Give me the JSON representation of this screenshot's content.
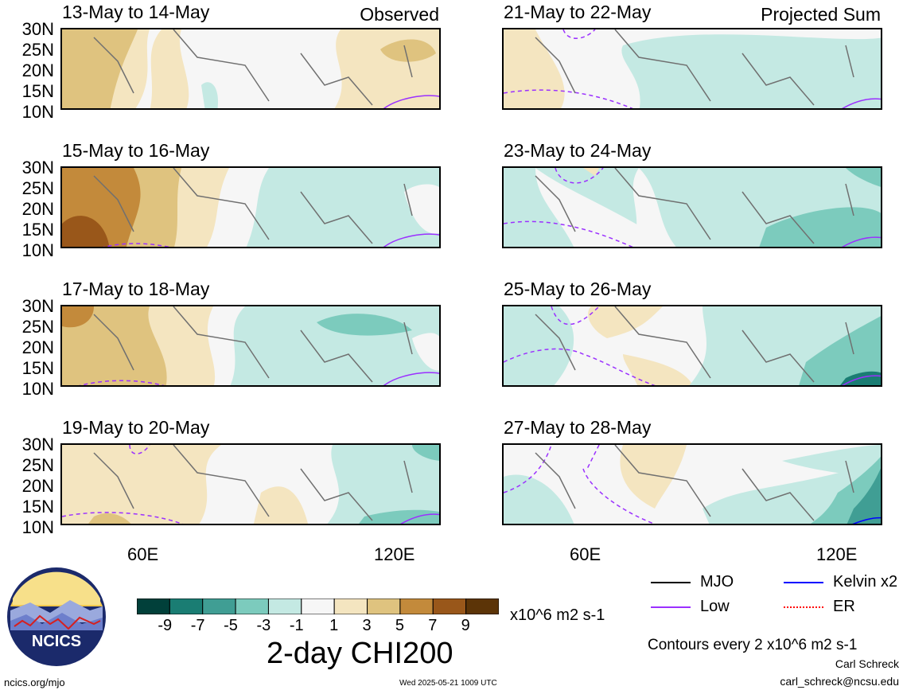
{
  "panels": [
    {
      "title": "13-May to 14-May",
      "tag": "Observed"
    },
    {
      "title": "21-May to 22-May",
      "tag": "Projected Sum"
    },
    {
      "title": "15-May to 16-May",
      "tag": ""
    },
    {
      "title": "23-May to 24-May",
      "tag": ""
    },
    {
      "title": "17-May to 18-May",
      "tag": ""
    },
    {
      "title": "25-May to 26-May",
      "tag": ""
    },
    {
      "title": "19-May to 20-May",
      "tag": ""
    },
    {
      "title": "27-May to 28-May",
      "tag": ""
    }
  ],
  "y_ticks": [
    "30N",
    "25N",
    "20N",
    "15N",
    "10N"
  ],
  "x_ticks": [
    "60E",
    "120E"
  ],
  "colorbar": {
    "colors": [
      "#01403a",
      "#1a7d73",
      "#409e94",
      "#7ccbbd",
      "#c4e9e3",
      "#f6f6f6",
      "#f4e5c0",
      "#dfc37f",
      "#c38a3b",
      "#99571a",
      "#5c3407"
    ],
    "ticks": [
      "-9",
      "-7",
      "-5",
      "-3",
      "-1",
      "1",
      "3",
      "5",
      "7",
      "9"
    ],
    "units": "x10^6 m2 s-1"
  },
  "variable_title": "2-day CHI200",
  "legend": [
    {
      "label": "MJO",
      "color": "#000000",
      "style": "solid"
    },
    {
      "label": "Kelvin x2",
      "color": "#0000ff",
      "style": "solid"
    },
    {
      "label": "Low",
      "color": "#9b30ff",
      "style": "solid"
    },
    {
      "label": "ER",
      "color": "#ff0000",
      "style": "dotted"
    }
  ],
  "contour_note": "Contours every 2 x10^6 m2 s-1",
  "author": "Carl Schreck",
  "email": "carl_schreck@ncsu.edu",
  "site": "ncics.org/mjo",
  "timestamp": "Wed 2025-05-21 1009 UTC",
  "logo_text": "NCICS"
}
